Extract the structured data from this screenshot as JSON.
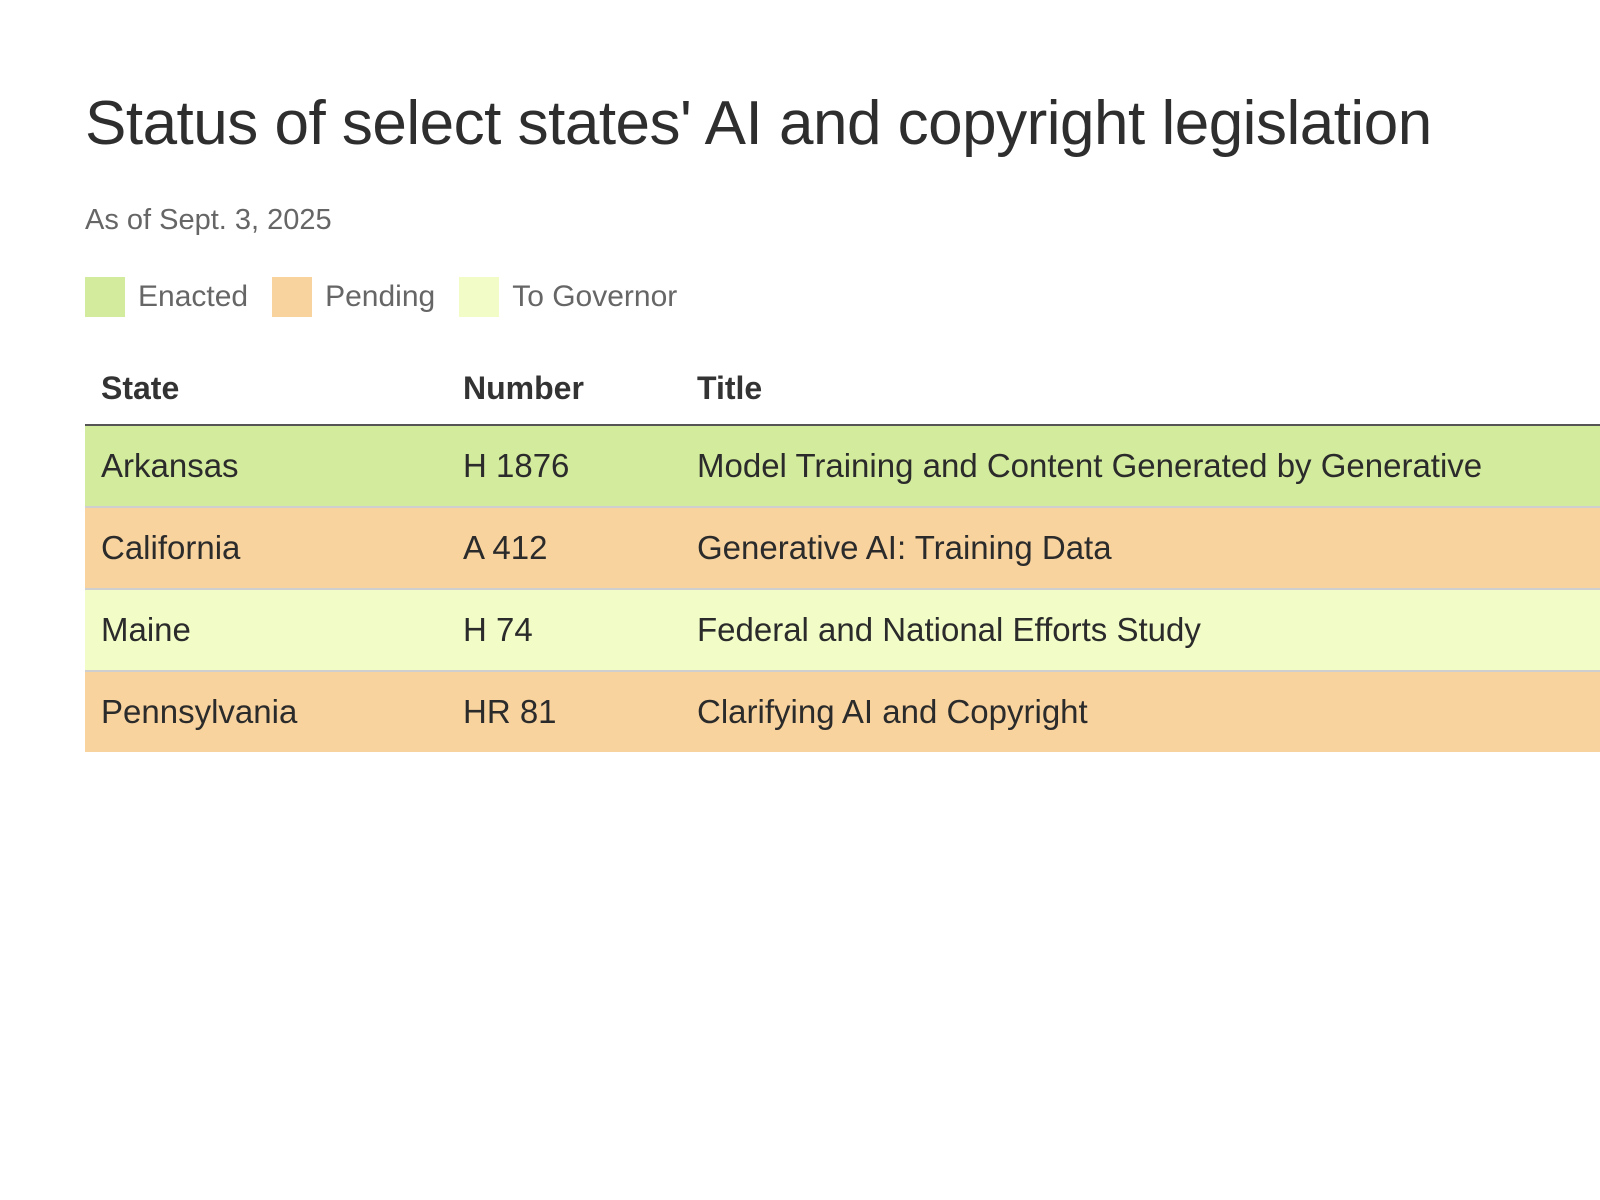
{
  "chart_data": {
    "type": "table",
    "title": "Status of select states' AI and copyright legislation",
    "subtitle": "As of Sept. 3, 2025",
    "legend": [
      {
        "label": "Enacted",
        "color": "#d3eb9d"
      },
      {
        "label": "Pending",
        "color": "#f8d39e"
      },
      {
        "label": "To Governor",
        "color": "#f1fcc6"
      }
    ],
    "columns": [
      "State",
      "Number",
      "Title"
    ],
    "rows": [
      {
        "state": "Arkansas",
        "number": "H 1876",
        "title": "Model Training and Content Generated by Generative",
        "status": "Enacted"
      },
      {
        "state": "California",
        "number": "A 412",
        "title": "Generative AI: Training Data",
        "status": "Pending"
      },
      {
        "state": "Maine",
        "number": "H 74",
        "title": "Federal and National Efforts Study",
        "status": "To Governor"
      },
      {
        "state": "Pennsylvania",
        "number": "HR 81",
        "title": "Clarifying AI and Copyright",
        "status": "Pending"
      }
    ]
  }
}
